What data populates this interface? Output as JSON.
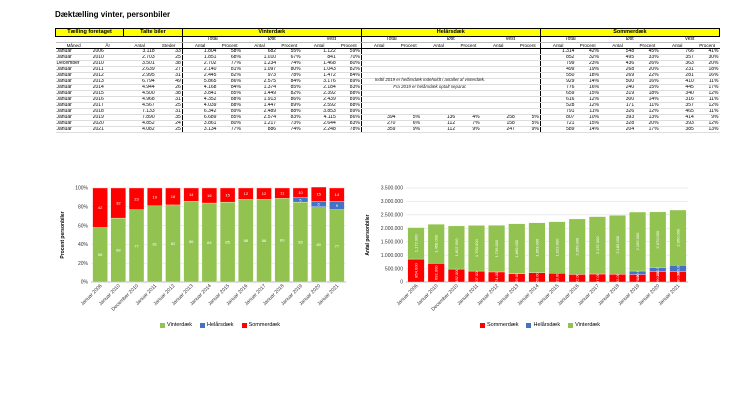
{
  "page": {
    "title": "Dæktælling vinter, personbiler",
    "note": [
      "Indtil 2019 er helårsdæk indeholdt i antallet af vinterdæk.",
      "Fra 2019 er helårsdæk optalt separat."
    ]
  },
  "table": {
    "groups": [
      "Tælling foretaget",
      "Talte biler",
      "Vinterdæk",
      "Helårsdæk",
      "Sommerdæk"
    ],
    "regions": [
      "Total",
      "Øst",
      "Vest"
    ],
    "col_labels": {
      "maned": "Måned",
      "ar": "År",
      "antal": "Antal",
      "steder": "Steder",
      "procent": "Procent"
    },
    "rows": [
      {
        "m": "Januar",
        "y": "2006",
        "antal": "3.118",
        "steder": "33",
        "w": [
          "1.804",
          "58%",
          "682",
          "55%",
          "1.122",
          "59%"
        ],
        "h": [
          "",
          "",
          "",
          "",
          "",
          ""
        ],
        "s": [
          "1.314",
          "42%",
          "548",
          "45%",
          "766",
          "41%"
        ]
      },
      {
        "m": "Januar",
        "y": "2010",
        "antal": "2.703",
        "steder": "25",
        "w": [
          "1.851",
          "68%",
          "1.010",
          "67%",
          "841",
          "70%"
        ],
        "h": [
          "",
          "",
          "",
          "",
          "",
          ""
        ],
        "s": [
          "852",
          "32%",
          "495",
          "33%",
          "357",
          "30%"
        ]
      },
      {
        "m": "December",
        "y": "2010",
        "antal": "3.501",
        "steder": "38",
        "w": [
          "2.702",
          "77%",
          "1.234",
          "74%",
          "1.468",
          "80%"
        ],
        "h": [
          "",
          "",
          "",
          "",
          "",
          ""
        ],
        "s": [
          "799",
          "23%",
          "436",
          "26%",
          "363",
          "20%"
        ]
      },
      {
        "m": "Januar",
        "y": "2011",
        "antal": "2.639",
        "steder": "27",
        "w": [
          "2.140",
          "81%",
          "1.097",
          "80%",
          "1.043",
          "82%"
        ],
        "h": [
          "",
          "",
          "",
          "",
          "",
          ""
        ],
        "s": [
          "499",
          "19%",
          "268",
          "20%",
          "231",
          "18%"
        ]
      },
      {
        "m": "Januar",
        "y": "2012",
        "antal": "2.995",
        "steder": "31",
        "w": [
          "2.445",
          "82%",
          "973",
          "78%",
          "1.472",
          "84%"
        ],
        "h": [
          "",
          "",
          "",
          "",
          "",
          ""
        ],
        "s": [
          "550",
          "18%",
          "269",
          "22%",
          "281",
          "16%"
        ]
      },
      {
        "m": "Januar",
        "y": "2013",
        "antal": "6.794",
        "steder": "49",
        "w": [
          "5.865",
          "86%",
          "2.575",
          "84%",
          "3.176",
          "89%"
        ],
        "h": [
          "",
          "",
          "",
          "",
          "",
          ""
        ],
        "s": [
          "929",
          "14%",
          "500",
          "16%",
          "410",
          "11%"
        ]
      },
      {
        "m": "Januar",
        "y": "2014",
        "antal": "4.944",
        "steder": "26",
        "w": [
          "4.168",
          "84%",
          "1.374",
          "85%",
          "2.184",
          "83%"
        ],
        "h": [
          "",
          "",
          "",
          "",
          "",
          ""
        ],
        "s": [
          "776",
          "16%",
          "240",
          "15%",
          "445",
          "17%"
        ]
      },
      {
        "m": "Januar",
        "y": "2015",
        "antal": "4.500",
        "steder": "38",
        "w": [
          "3.841",
          "85%",
          "1.449",
          "82%",
          "2.392",
          "88%"
        ],
        "h": [
          "",
          "",
          "",
          "",
          "",
          ""
        ],
        "s": [
          "659",
          "15%",
          "319",
          "18%",
          "340",
          "12%"
        ]
      },
      {
        "m": "Januar",
        "y": "2016",
        "antal": "4.968",
        "steder": "31",
        "w": [
          "4.352",
          "88%",
          "1.913",
          "86%",
          "2.439",
          "89%"
        ],
        "h": [
          "",
          "",
          "",
          "",
          "",
          ""
        ],
        "s": [
          "616",
          "12%",
          "300",
          "14%",
          "316",
          "11%"
        ]
      },
      {
        "m": "Januar",
        "y": "2017",
        "antal": "4.567",
        "steder": "25",
        "w": [
          "4.039",
          "88%",
          "1.447",
          "89%",
          "2.592",
          "88%"
        ],
        "h": [
          "",
          "",
          "",
          "",
          "",
          ""
        ],
        "s": [
          "528",
          "12%",
          "171",
          "11%",
          "357",
          "12%"
        ]
      },
      {
        "m": "Januar",
        "y": "2018",
        "antal": "7.133",
        "steder": "31",
        "w": [
          "6.342",
          "89%",
          "2.489",
          "88%",
          "3.853",
          "89%"
        ],
        "h": [
          "",
          "",
          "",
          "",
          "",
          ""
        ],
        "s": [
          "791",
          "11%",
          "326",
          "12%",
          "465",
          "11%"
        ]
      },
      {
        "m": "Januar",
        "y": "2019",
        "antal": "7.890",
        "steder": "35",
        "w": [
          "6.689",
          "85%",
          "2.574",
          "83%",
          "4.115",
          "86%"
        ],
        "h": [
          "394",
          "5%",
          "136",
          "4%",
          "258",
          "5%"
        ],
        "s": [
          "807",
          "10%",
          "393",
          "13%",
          "414",
          "9%"
        ]
      },
      {
        "m": "Januar",
        "y": "2020",
        "antal": "4.852",
        "steder": "24",
        "w": [
          "3.861",
          "80%",
          "1.217",
          "73%",
          "2.644",
          "83%"
        ],
        "h": [
          "270",
          "6%",
          "112",
          "7%",
          "158",
          "5%"
        ],
        "s": [
          "721",
          "15%",
          "328",
          "20%",
          "393",
          "12%"
        ]
      },
      {
        "m": "Januar",
        "y": "2021",
        "antal": "4.082",
        "steder": "25",
        "w": [
          "3.134",
          "77%",
          "886",
          "74%",
          "2.248",
          "78%"
        ],
        "h": [
          "359",
          "9%",
          "112",
          "9%",
          "247",
          "9%"
        ],
        "s": [
          "589",
          "14%",
          "204",
          "17%",
          "385",
          "13%"
        ]
      }
    ]
  },
  "legend": {
    "vinter": "Vinterdæk",
    "helaar": "Helårsdæk",
    "sommer": "Sommerdæk"
  },
  "chart_data": [
    {
      "type": "bar",
      "stacked": true,
      "percent": true,
      "ylabel": "Procent personbiler",
      "ylim": [
        0,
        100
      ],
      "yticks": [
        "0%",
        "20%",
        "40%",
        "60%",
        "80%",
        "100%"
      ],
      "categories": [
        "Januar 2006",
        "Januar 2010",
        "December 2010",
        "Januar 2011",
        "Januar 2012",
        "Januar 2013",
        "Januar 2014",
        "Januar 2015",
        "Januar 2016",
        "Januar 2017",
        "Januar 2018",
        "Januar 2019",
        "Januar 2020",
        "Januar 2021"
      ],
      "series": [
        {
          "name": "Vinterdæk",
          "color": "#92c350",
          "values": [
            58,
            68,
            77,
            81,
            82,
            86,
            84,
            85,
            88,
            88,
            89,
            85,
            80,
            77
          ]
        },
        {
          "name": "Helårsdæk",
          "color": "#4472c4",
          "values": [
            0,
            0,
            0,
            0,
            0,
            0,
            0,
            0,
            0,
            0,
            0,
            5,
            6,
            9
          ]
        },
        {
          "name": "Sommerdæk",
          "color": "#ff0000",
          "values": [
            42,
            32,
            23,
            19,
            18,
            14,
            16,
            15,
            12,
            12,
            11,
            10,
            15,
            14
          ]
        }
      ],
      "legend_position": "bottom",
      "grid": true
    },
    {
      "type": "bar",
      "stacked": true,
      "ylabel": "Antal personbiler",
      "ylim": [
        0,
        3500000
      ],
      "yticks": [
        "0",
        "500.000",
        "1.000.000",
        "1.500.000",
        "2.000.000",
        "2.500.000",
        "3.000.000",
        "3.500.000"
      ],
      "categories": [
        "Januar 2006",
        "Januar 2010",
        "December 2010",
        "Januar 2011",
        "Januar 2012",
        "Januar 2013",
        "Januar 2014",
        "Januar 2015",
        "Januar 2016",
        "Januar 2017",
        "Januar 2018",
        "Januar 2019",
        "Januar 2020",
        "Januar 2021"
      ],
      "series": [
        {
          "name": "Sommerdæk",
          "color": "#ff0000",
          "values": [
            854000,
            692000,
            482000,
            407000,
            374000,
            309000,
            350000,
            323000,
            282000,
            297000,
            292000,
            279000,
            390000,
            380000
          ],
          "labels": [
            "854.000",
            "692.000",
            "482.000",
            "407.000",
            "374.000",
            "309.000",
            "350.000",
            "323.000",
            "282.000",
            "297.000",
            "292.000",
            "279.000",
            "390.000",
            "380.000"
          ]
        },
        {
          "name": "Helårsdæk",
          "color": "#4472c4",
          "values": [
            0,
            0,
            0,
            0,
            0,
            0,
            0,
            0,
            0,
            0,
            0,
            130000,
            150000,
            240000
          ],
          "labels": [
            "",
            "",
            "",
            "",
            "",
            "",
            "",
            "",
            "",
            "",
            "",
            "130.000",
            "150.000",
            "240.000"
          ]
        },
        {
          "name": "Vinterdæk",
          "color": "#92c350",
          "values": [
            1172000,
            1458000,
            1607000,
            1700000,
            1736000,
            1860000,
            1853000,
            1922000,
            2066000,
            2137000,
            2189000,
            2196000,
            2070000,
            2060000
          ],
          "labels": [
            "1.172.000",
            "1.458.000",
            "1.607.000",
            "1.700.000",
            "1.736.000",
            "1.860.000",
            "1.853.000",
            "1.922.000",
            "2.066.000",
            "2.137.000",
            "2.189.000",
            "2.196.000",
            "2.070.000",
            "2.060.000"
          ]
        }
      ],
      "legend_position": "bottom",
      "grid": true
    }
  ]
}
